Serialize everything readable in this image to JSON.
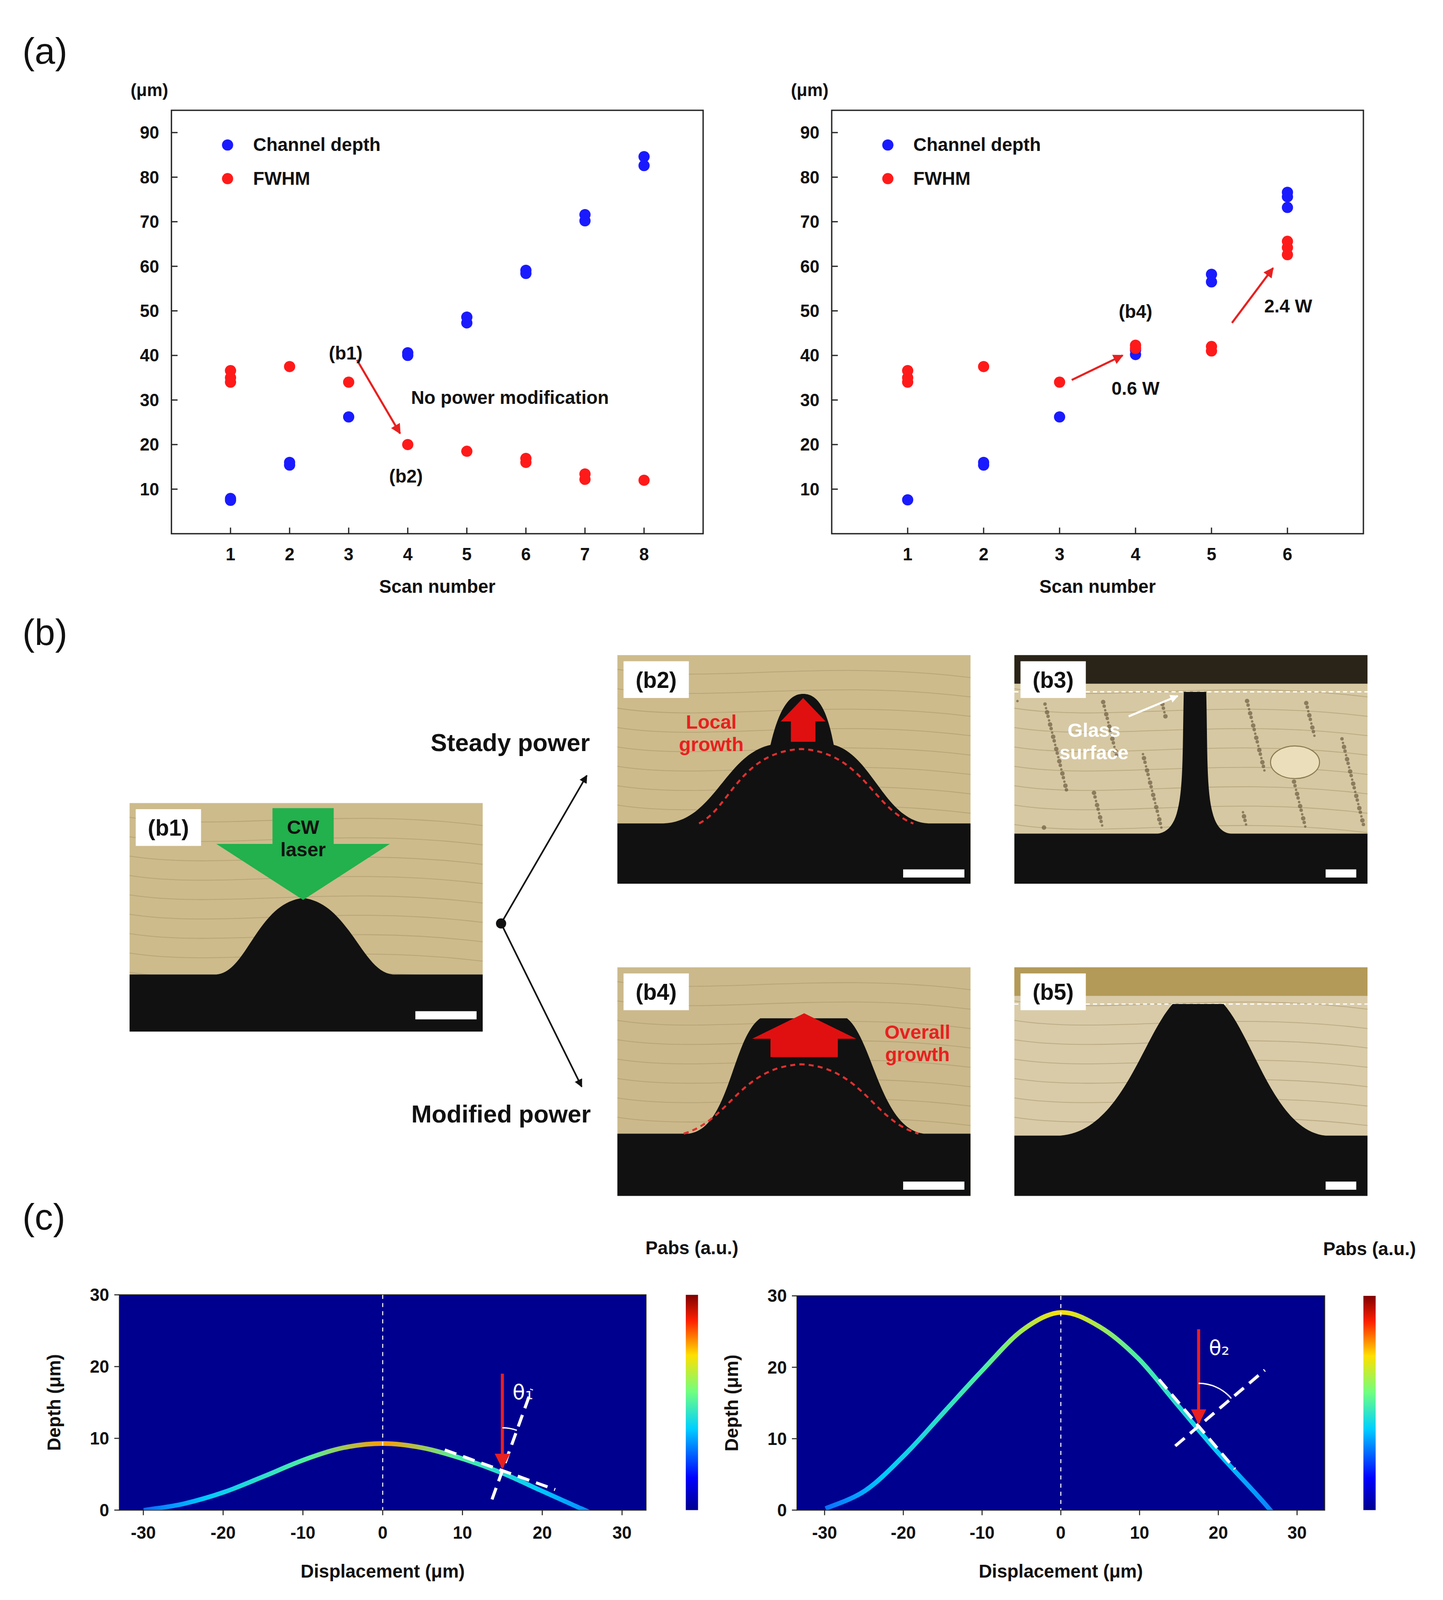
{
  "panel_labels": [
    "(a)",
    "(b)",
    "(c)"
  ],
  "chart_data": [
    {
      "type": "scatter",
      "x_label": "Scan number",
      "y_label": "(μm)",
      "xlim": [
        0,
        9
      ],
      "ylim": [
        0,
        95
      ],
      "xticks": [
        1,
        2,
        3,
        4,
        5,
        6,
        7,
        8
      ],
      "yticks": [
        10,
        20,
        30,
        40,
        50,
        60,
        70,
        80,
        90
      ],
      "legend": "upper left",
      "marker": "circle",
      "series": [
        {
          "name": "Channel depth",
          "color": "#1a1aff",
          "x": [
            1,
            1,
            2,
            2,
            3,
            4,
            4,
            5,
            5,
            6,
            6,
            7,
            7,
            8,
            8
          ],
          "values": [
            7.5,
            7.9,
            15.4,
            16,
            26.2,
            40,
            40.6,
            47.3,
            48.6,
            58.4,
            59.1,
            70.2,
            71.6,
            82.6,
            84.6
          ]
        },
        {
          "name": "FWHM",
          "color": "#ff1a1a",
          "x": [
            1,
            1,
            1,
            2,
            3,
            4,
            5,
            6,
            6,
            7,
            7,
            8
          ],
          "values": [
            34,
            35,
            36.6,
            37.5,
            34,
            20,
            18.5,
            16,
            16.9,
            12.2,
            13.4,
            12
          ]
        }
      ],
      "annotations": [
        {
          "text": "(b1)",
          "x": 2.95,
          "y": 40.5
        },
        {
          "text": "No power modification",
          "x": 5.73,
          "y": 30.5
        },
        {
          "text": "(b2)",
          "x": 3.97,
          "y": 12.8
        }
      ],
      "arrows": [
        {
          "x": [
            3.14,
            3.87
          ],
          "y": [
            39,
            22.5
          ]
        }
      ]
    },
    {
      "type": "scatter",
      "x_label": "Scan number",
      "y_label": "(μm)",
      "xlim": [
        0,
        7
      ],
      "ylim": [
        0,
        95
      ],
      "xticks": [
        1,
        2,
        3,
        4,
        5,
        6
      ],
      "yticks": [
        10,
        20,
        30,
        40,
        50,
        60,
        70,
        80,
        90
      ],
      "legend": "upper left",
      "marker": "circle",
      "series": [
        {
          "name": "Channel depth",
          "color": "#1a1aff",
          "x": [
            1,
            2,
            2,
            3,
            4,
            4,
            5,
            5,
            6,
            6,
            6
          ],
          "values": [
            7.6,
            15.4,
            16,
            26.2,
            40.2,
            41.2,
            56.5,
            58.2,
            73.2,
            75.6,
            76.6
          ]
        },
        {
          "name": "FWHM",
          "color": "#ff1a1a",
          "x": [
            1,
            1,
            1,
            2,
            3,
            4,
            4,
            5,
            5,
            6,
            6,
            6
          ],
          "values": [
            34,
            35,
            36.6,
            37.5,
            34,
            41.6,
            42.3,
            41,
            42,
            62.6,
            64.2,
            65.6
          ]
        }
      ],
      "annotations": [
        {
          "text": "(b4)",
          "x": 4.0,
          "y": 49.8
        },
        {
          "text": "0.6 W",
          "x": 4.0,
          "y": 32.6
        },
        {
          "text": "2.4 W",
          "x": 6.01,
          "y": 51
        }
      ],
      "arrows": [
        {
          "x": [
            3.16,
            3.83
          ],
          "y": [
            34.5,
            40
          ]
        },
        {
          "x": [
            5.27,
            5.81
          ],
          "y": [
            47.3,
            59.6
          ]
        }
      ]
    },
    {
      "type": "line",
      "x_label": "Displacement (μm)",
      "y_label": "Depth (μm)",
      "xlim": [
        -33,
        33
      ],
      "ylim": [
        0,
        30
      ],
      "xticks": [
        -30,
        -20,
        -10,
        0,
        10,
        20,
        30
      ],
      "yticks": [
        0,
        10,
        20,
        30
      ],
      "x": [
        -30,
        -25,
        -20,
        -15,
        -10,
        -5,
        0,
        5,
        10,
        15,
        20,
        25,
        26
      ],
      "values": [
        0.3,
        1.2,
        2.8,
        5,
        7.3,
        9,
        9.6,
        9,
        7.5,
        5.5,
        3,
        0.5,
        0
      ],
      "colorbar_label": "Pabs (a.u.)",
      "annotations": [
        {
          "text": "θ₁",
          "x": 15
        }
      ]
    },
    {
      "type": "line",
      "x_label": "Displacement (μm)",
      "y_label": "Depth (μm)",
      "xlim": [
        -33.5,
        33.5
      ],
      "ylim": [
        0,
        30
      ],
      "xticks": [
        -30,
        -20,
        -10,
        0,
        10,
        20,
        30
      ],
      "yticks": [
        0,
        10,
        20,
        30
      ],
      "x": [
        -30,
        -25,
        -20,
        -15,
        -10,
        -5,
        0,
        5,
        10,
        15,
        20,
        25,
        27
      ],
      "values": [
        0.5,
        3,
        8,
        14,
        20,
        25.5,
        28,
        26,
        21.5,
        15,
        8.5,
        2.5,
        0
      ],
      "colorbar_label": "Pabs (a.u.)",
      "annotations": [
        {
          "text": "θ₂",
          "x": 17.5
        }
      ]
    }
  ],
  "micrographs": {
    "branches": [
      "Steady power",
      "Modified power"
    ],
    "images": [
      {
        "label": "(b1)",
        "texts": [
          "CW laser"
        ]
      },
      {
        "label": "(b2)",
        "texts": [
          "Local growth"
        ]
      },
      {
        "label": "(b3)",
        "texts": [
          "Glass surface"
        ]
      },
      {
        "label": "(b4)",
        "texts": [
          "Overall growth"
        ]
      },
      {
        "label": "(b5)"
      }
    ]
  }
}
